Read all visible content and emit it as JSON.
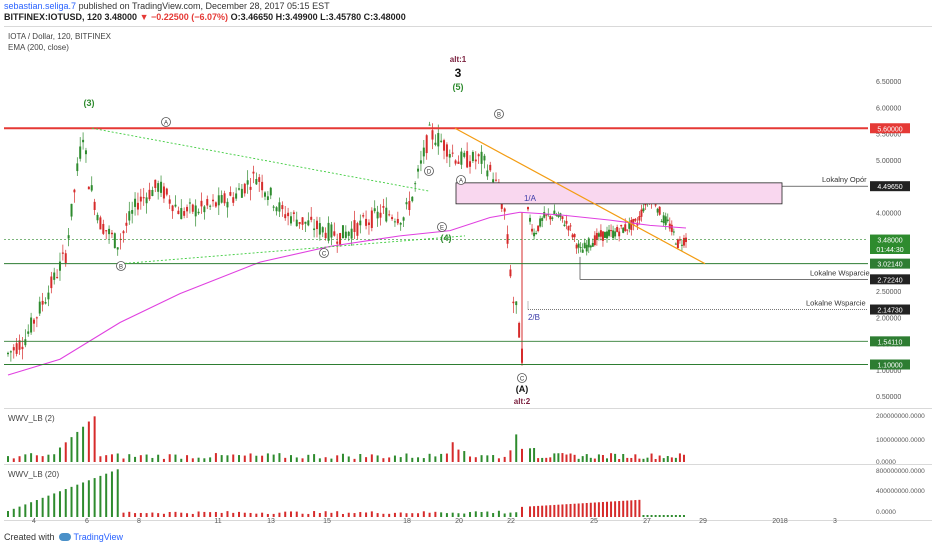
{
  "header": {
    "author": "sebastian.seliga.7",
    "published": "published on TradingView.com, December 28, 2017 05:15 EST",
    "ticker_line": "BITFINEX:IOTUSD, 120 3.48000",
    "change": "−0.22500 (−6.07%)",
    "ohlc": "O:3.46650 H:3.49900 L:3.45780 C:3.48000"
  },
  "legend": {
    "symbol": "IOTA / Dollar, 120, BITFINEX",
    "ema": "EMA (200, close)",
    "vol1": "WWV_LB (2)",
    "vol2": "WWV_LB (20)"
  },
  "footer": {
    "created_with": "Created with",
    "brand": "TradingView"
  },
  "colors": {
    "up": "#2e8b2e",
    "down": "#d62b2b",
    "ema": "#e040e0",
    "orange": "#f39c12",
    "red_level": "#e53935",
    "green_level": "#2e7d32",
    "blue_label": "#3a3aa8",
    "maroon": "#7a1f3d"
  },
  "chart_data": {
    "type": "candlestick",
    "symbol": "IOTA / Dollar, 120, BITFINEX",
    "price_axis": {
      "ticks": [
        "6.50000",
        "6.00000",
        "5.50000",
        "5.00000",
        "4.50000",
        "4.00000",
        "3.50000",
        "3.00000",
        "2.50000",
        "2.00000",
        "1.50000",
        "1.00000",
        "0.50000"
      ],
      "range": [
        0.5,
        6.5
      ]
    },
    "time_axis": [
      "4",
      "6",
      "8",
      "11",
      "13",
      "15",
      "18",
      "20",
      "22",
      "25",
      "27",
      "29",
      "2018",
      "3"
    ],
    "price_boxes": [
      {
        "label": "5.60000",
        "value": 5.6,
        "color": "#e53935"
      },
      {
        "label": "4.49650",
        "value": 4.4965,
        "color": "#222222"
      },
      {
        "label": "3.48000",
        "value": 3.48,
        "color": "#2e8b2e"
      },
      {
        "label": "01:44:30",
        "value": 3.3,
        "color": "#2e8b2e"
      },
      {
        "label": "3.02140",
        "value": 3.0214,
        "color": "#2e7d32"
      },
      {
        "label": "2.72240",
        "value": 2.7224,
        "color": "#222222"
      },
      {
        "label": "2.14730",
        "value": 2.1473,
        "color": "#222222"
      },
      {
        "label": "1.54110",
        "value": 1.5411,
        "color": "#2e7d32"
      },
      {
        "label": "1.10000",
        "value": 1.1,
        "color": "#2e7d32"
      }
    ],
    "annotations": {
      "lokalny_opor": "Lokalny Opór",
      "wsparcie1": "Lokalne Wsparcie",
      "wsparcie2": "Lokalne Wsparcie",
      "alt1": "alt:1",
      "three": "3",
      "five": "(5)",
      "three_p": "(3)",
      "four_p": "(4)",
      "A_big": "(A)",
      "alt2": "alt:2",
      "oneA": "1/A",
      "twoB": "2/B",
      "circles": [
        "A",
        "B",
        "C",
        "D",
        "E",
        "A",
        "B",
        "C",
        "A"
      ]
    },
    "vol1_axis": [
      "200000000.0000",
      "100000000.0000",
      "0.0000"
    ],
    "vol2_axis": [
      "800000000.0000",
      "400000000.0000",
      "0.0000"
    ]
  }
}
